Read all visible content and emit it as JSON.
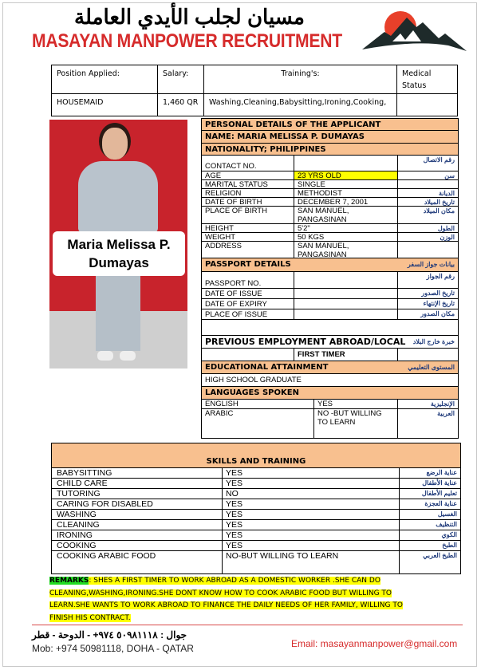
{
  "header": {
    "arabic_name": "مسيان لجلب الأيدي العاملة",
    "company_name": "MASAYAN MANPOWER RECRUITMENT",
    "logo": "mountain-sun-logo",
    "brand_color": "#d62b2b"
  },
  "top_table": {
    "headers": [
      "Position Applied:",
      "Salary:",
      "Training's:",
      "Medical Status"
    ],
    "values": [
      "HOUSEMAID",
      "1,460 QR",
      "Washing,Cleaning,Babysitting,Ironing,Cooking,",
      ""
    ]
  },
  "photo": {
    "caption": "Maria Melissa P. Dumayas",
    "background": "#c8232c"
  },
  "personal": {
    "title": "PERSONAL DETAILS OF THE APPLICANT",
    "name": "NAME: MARIA MELISSA P. DUMAYAS",
    "nationality": "NATIONALITY; PHILIPPINES",
    "rows": [
      {
        "label": "CONTACT NO.",
        "value": "",
        "arabic": "رقم الاتصال"
      },
      {
        "label": "AGE",
        "value": "23 YRS OLD",
        "arabic": "سن"
      },
      {
        "label": "MARITAL STATUS",
        "value": "SINGLE",
        "arabic": ""
      },
      {
        "label": "RELIGION",
        "value": "METHODIST",
        "arabic": "الديانة"
      },
      {
        "label": "DATE OF BIRTH",
        "value": "DECEMBER 7, 2001",
        "arabic": "تاريخ الميلاد"
      },
      {
        "label": "PLACE OF BIRTH",
        "value": "SAN MANUEL, PANGASINAN",
        "arabic": "مكان الميلاد"
      },
      {
        "label": "HEIGHT",
        "value": "5'2\"",
        "arabic": "الطول"
      },
      {
        "label": "WEIGHT",
        "value": "50 KGS",
        "arabic": "الوزن"
      },
      {
        "label": "ADDRESS",
        "value": "SAN MANUEL, PANGASINAN",
        "arabic": ""
      }
    ]
  },
  "passport": {
    "title": "PASSPORT DETAILS",
    "title_arabic": "بيانات جواز السفر",
    "rows": [
      {
        "label": "PASSPORT NO.",
        "value": "",
        "arabic": "رقم الجواز"
      },
      {
        "label": "DATE OF ISSUE",
        "value": "",
        "arabic": "تاريخ الصدور"
      },
      {
        "label": "DATE OF EXPIRY",
        "value": "",
        "arabic": "تاريخ الإنتهاء"
      },
      {
        "label": "PLACE OF ISSUE",
        "value": "",
        "arabic": "مكان الصدور"
      }
    ]
  },
  "previous_employment": {
    "title": "PREVIOUS EMPLOYMENT ABROAD/LOCAL",
    "title_arabic": "خبرة خارج البلاد",
    "value": "FIRST TIMER"
  },
  "education": {
    "title": "EDUCATIONAL ATTAINMENT",
    "title_arabic": "المستوى التعليمي",
    "value": "HIGH SCHOOL GRADUATE"
  },
  "languages": {
    "title": "LANGUAGES SPOKEN",
    "rows": [
      {
        "label": "ENGLISH",
        "value": "YES",
        "arabic": "الإنجليزية"
      },
      {
        "label": "ARABIC",
        "value": "NO -BUT WILLING TO LEARN",
        "arabic": "العربية"
      }
    ]
  },
  "skills": {
    "title": "SKILLS AND TRAINING",
    "rows": [
      {
        "label": "BABYSITTING",
        "value": "YES",
        "arabic": "عناية الرضع"
      },
      {
        "label": "CHILD CARE",
        "value": "YES",
        "arabic": "عناية الأطفال"
      },
      {
        "label": "TUTORING",
        "value": "NO",
        "arabic": "تعليم الأطفال"
      },
      {
        "label": "CARING FOR DISABLED",
        "value": "YES",
        "arabic": "عناية العجزة"
      },
      {
        "label": "WASHING",
        "value": "YES",
        "arabic": "الغسيل"
      },
      {
        "label": "CLEANING",
        "value": "YES",
        "arabic": "التنظيف"
      },
      {
        "label": "IRONING",
        "value": "YES",
        "arabic": "الكوي"
      },
      {
        "label": "COOKING",
        "value": "YES",
        "arabic": "الطبخ"
      },
      {
        "label": "COOKING ARABIC FOOD",
        "value": "NO-BUT WILLING TO LEARN",
        "arabic": "الطبخ العربي"
      }
    ]
  },
  "remarks": {
    "label": "REMARKS",
    "text": ": SHES A FIRST TIMER TO WORK ABROAD   AS A DOMESTIC WORKER .SHE  CAN DO CLEANING,WASHING,IRONING.SHE DONT  KNOW HOW TO COOK  ARABIC FOOD  BUT WILLING TO LEARN.SHE WANTS TO WORK ABROAD TO FINANCE THE DAILY NEEDS OF HER FAMILY, WILLING TO FINISH HIS CONTRACT."
  },
  "footer": {
    "arabic": "جوال : ٥٠٩٨١١١٨ ٩٧٤+ - الدوحة - قطر",
    "mobile": "Mob: +974 50981118, DOHA - QATAR",
    "email": "Email: masayanmanpower@gmail.com"
  }
}
